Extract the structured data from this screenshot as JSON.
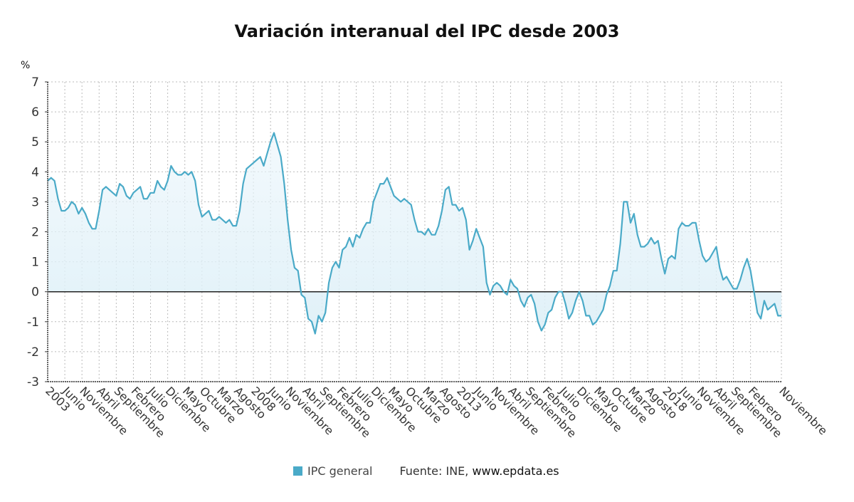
{
  "chart_data": {
    "type": "area",
    "title": "Variación interanual del IPC desde 2003",
    "ylabel": "%",
    "xlabel": "",
    "ylim": [
      -3,
      7
    ],
    "yticks": [
      -3,
      -2,
      -1,
      0,
      1,
      2,
      3,
      4,
      5,
      6,
      7
    ],
    "grid": true,
    "legend_position": "bottom",
    "x_start": "2003-01",
    "x_end": "2020-11",
    "xtick_labels": [
      "2003",
      "Junio",
      "Noviembre",
      "Abril",
      "Septiembre",
      "Febrero",
      "Julio",
      "Diciembre",
      "Mayo",
      "Octubre",
      "Marzo",
      "Agosto",
      "2008",
      "Junio",
      "Noviembre",
      "Abril",
      "Septiembre",
      "Febrero",
      "Julio",
      "Diciembre",
      "Mayo",
      "Octubre",
      "Marzo",
      "Agosto",
      "2013",
      "Junio",
      "Noviembre",
      "Abril",
      "Septiembre",
      "Febrero",
      "Julio",
      "Diciembre",
      "Mayo",
      "Octubre",
      "Marzo",
      "Agosto",
      "2018",
      "Junio",
      "Noviembre",
      "Abril",
      "Septiembre",
      "Febrero",
      "Noviembre"
    ],
    "xtick_month_index": [
      0,
      5,
      10,
      15,
      20,
      25,
      30,
      35,
      40,
      45,
      50,
      55,
      60,
      65,
      70,
      75,
      80,
      85,
      90,
      95,
      100,
      105,
      110,
      115,
      120,
      125,
      130,
      135,
      140,
      145,
      150,
      155,
      160,
      165,
      170,
      175,
      180,
      185,
      190,
      195,
      200,
      205,
      214
    ],
    "series": [
      {
        "name": "IPC general",
        "color": "#4aaac8",
        "values": [
          3.7,
          3.8,
          3.7,
          3.1,
          2.7,
          2.7,
          2.8,
          3.0,
          2.9,
          2.6,
          2.8,
          2.6,
          2.3,
          2.1,
          2.1,
          2.7,
          3.4,
          3.5,
          3.4,
          3.3,
          3.2,
          3.6,
          3.5,
          3.2,
          3.1,
          3.3,
          3.4,
          3.5,
          3.1,
          3.1,
          3.3,
          3.3,
          3.7,
          3.5,
          3.4,
          3.7,
          4.2,
          4.0,
          3.9,
          3.9,
          4.0,
          3.9,
          4.0,
          3.7,
          2.9,
          2.5,
          2.6,
          2.7,
          2.4,
          2.4,
          2.5,
          2.4,
          2.3,
          2.4,
          2.2,
          2.2,
          2.7,
          3.6,
          4.1,
          4.2,
          4.3,
          4.4,
          4.5,
          4.2,
          4.6,
          5.0,
          5.3,
          4.9,
          4.5,
          3.6,
          2.4,
          1.4,
          0.8,
          0.7,
          -0.1,
          -0.2,
          -0.9,
          -1.0,
          -1.4,
          -0.8,
          -1.0,
          -0.7,
          0.3,
          0.8,
          1.0,
          0.8,
          1.4,
          1.5,
          1.8,
          1.5,
          1.9,
          1.8,
          2.1,
          2.3,
          2.3,
          3.0,
          3.3,
          3.6,
          3.6,
          3.8,
          3.5,
          3.2,
          3.1,
          3.0,
          3.1,
          3.0,
          2.9,
          2.4,
          2.0,
          2.0,
          1.9,
          2.1,
          1.9,
          1.9,
          2.2,
          2.7,
          3.4,
          3.5,
          2.9,
          2.9,
          2.7,
          2.8,
          2.4,
          1.4,
          1.7,
          2.1,
          1.8,
          1.5,
          0.3,
          -0.1,
          0.2,
          0.3,
          0.2,
          0.0,
          -0.1,
          0.4,
          0.2,
          0.1,
          -0.3,
          -0.5,
          -0.2,
          -0.1,
          -0.4,
          -1.0,
          -1.3,
          -1.1,
          -0.7,
          -0.6,
          -0.2,
          0.0,
          0.0,
          -0.4,
          -0.9,
          -0.7,
          -0.3,
          0.0,
          -0.3,
          -0.8,
          -0.8,
          -1.1,
          -1.0,
          -0.8,
          -0.6,
          -0.1,
          0.2,
          0.7,
          0.7,
          1.6,
          3.0,
          3.0,
          2.3,
          2.6,
          1.9,
          1.5,
          1.5,
          1.6,
          1.8,
          1.6,
          1.7,
          1.1,
          0.6,
          1.1,
          1.2,
          1.1,
          2.1,
          2.3,
          2.2,
          2.2,
          2.3,
          2.3,
          1.7,
          1.2,
          1.0,
          1.1,
          1.3,
          1.5,
          0.8,
          0.4,
          0.5,
          0.3,
          0.1,
          0.1,
          0.4,
          0.8,
          1.1,
          0.7,
          0.0,
          -0.7,
          -0.9,
          -0.3,
          -0.6,
          -0.5,
          -0.4,
          -0.8,
          -0.8
        ]
      }
    ]
  },
  "legend": {
    "label": "IPC general"
  },
  "source": {
    "prefix": "Fuente: INE, ",
    "site": "www.epdata.es"
  }
}
